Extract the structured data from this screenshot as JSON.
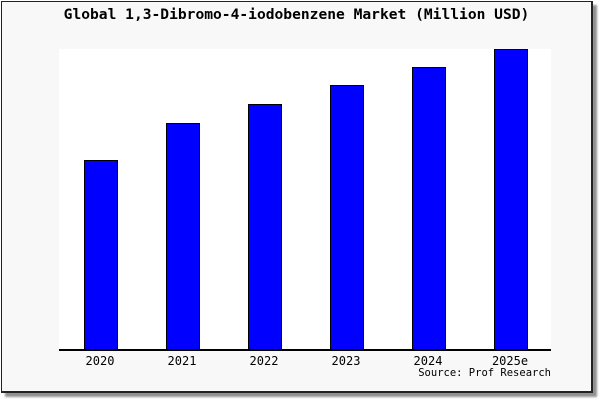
{
  "title": "Global 1,3-Dibromo-4-iodobenzene Market (Million USD)",
  "source_credit": "Source: Prof Research",
  "colors": {
    "bar_fill": "#0000ff",
    "bar_border": "#000000",
    "axis": "#000000",
    "plot_background": "#ffffff",
    "frame_background": "#f8f8f8",
    "frame_border": "#222222",
    "shadow": "#909090",
    "text": "#000000"
  },
  "chart_data": {
    "type": "bar",
    "title": "Global 1,3-Dibromo-4-iodobenzene Market (Million USD)",
    "categories": [
      "2020",
      "2021",
      "2022",
      "2023",
      "2024",
      "2025e"
    ],
    "values": [
      63,
      75.3,
      81.7,
      88,
      94,
      100
    ],
    "value_note": "y-axis has no ticks or labels; values are relative bar heights as percent of the tallest (2025e) bar",
    "xlabel": "",
    "ylabel": "",
    "ylim": [
      0,
      101
    ],
    "grid": false,
    "legend": false,
    "y_axis_visible": false
  }
}
